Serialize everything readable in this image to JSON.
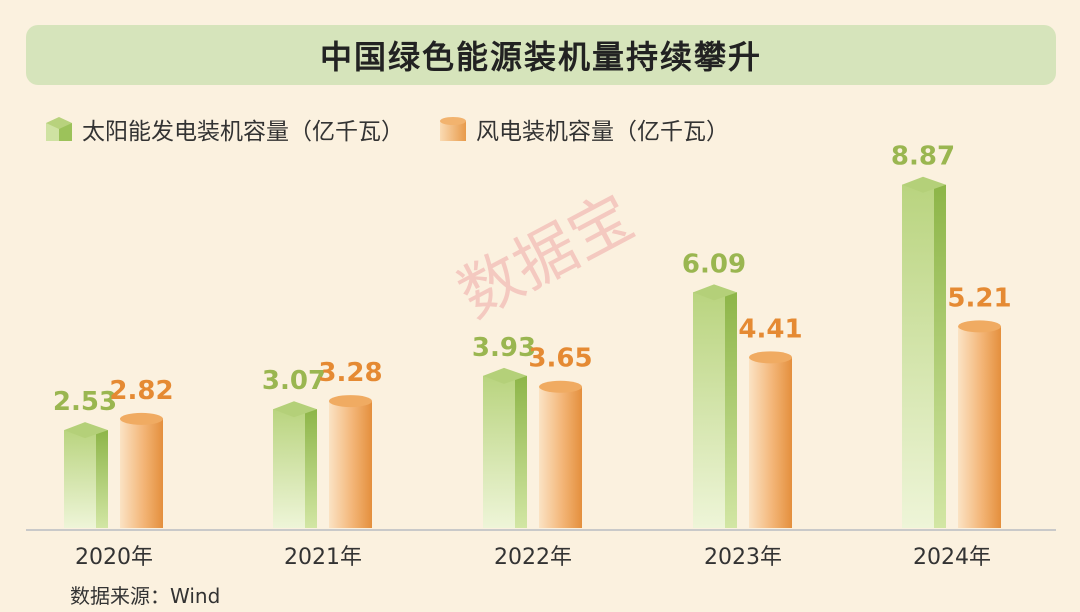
{
  "title": "中国绿色能源装机量持续攀升",
  "watermark": "数据宝",
  "source": "数据来源：Wind",
  "colors": {
    "solar_light": "#cfe2a2",
    "solar_dark": "#9cc25a",
    "wind_light": "#fadbb3",
    "wind_dark": "#e89a4a",
    "solar_label": "#9ab650",
    "wind_label": "#e58a33",
    "background": "#fbf1df",
    "title_bg": "#d6e4bb"
  },
  "chart_data": {
    "type": "bar",
    "title": "中国绿色能源装机量持续攀升",
    "categories": [
      "2020年",
      "2021年",
      "2022年",
      "2023年",
      "2024年"
    ],
    "series": [
      {
        "name": "太阳能发电装机容量（亿千瓦）",
        "values": [
          2.53,
          3.07,
          3.93,
          6.09,
          8.87
        ]
      },
      {
        "name": "风电装机容量（亿千瓦）",
        "values": [
          2.82,
          3.28,
          3.65,
          4.41,
          5.21
        ]
      }
    ],
    "data_labels": [
      [
        "2.53",
        "3.07",
        "3.93",
        "6.09",
        "8.87"
      ],
      [
        "2.82",
        "3.28",
        "3.65",
        "4.41",
        "5.21"
      ]
    ],
    "legend_position": "top-left",
    "grid": false,
    "ylim": [
      0,
      9.5
    ]
  }
}
